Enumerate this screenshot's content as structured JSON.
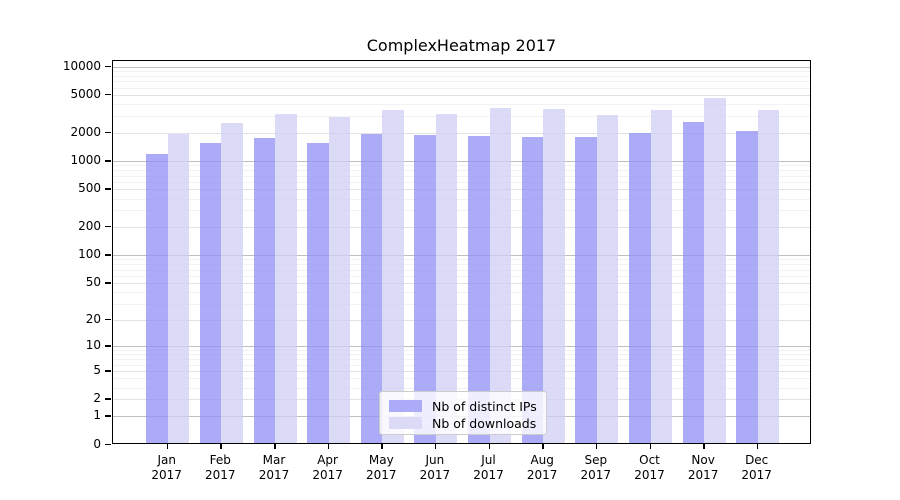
{
  "figure": {
    "title": "ComplexHeatmap 2017",
    "legend": [
      {
        "label": "Nb of distinct IPs",
        "color": "#ababf8"
      },
      {
        "label": "Nb of downloads",
        "color": "#dbdbf8"
      }
    ],
    "colors": {
      "ip_bar": "#ababf8",
      "downloads_bar": "#dbdbf8",
      "major_grid": "#bfbfbf",
      "minor_grid_labeled": "#e2e2e2",
      "minor_grid_faint": "#f2f2f2",
      "axis": "#000000"
    }
  },
  "chart_data": {
    "type": "bar",
    "title": "ComplexHeatmap 2017",
    "categories": [
      "Jan 2017",
      "Feb 2017",
      "Mar 2017",
      "Apr 2017",
      "May 2017",
      "Jun 2017",
      "Jul 2017",
      "Aug 2017",
      "Sep 2017",
      "Oct 2017",
      "Nov 2017",
      "Dec 2017"
    ],
    "series": [
      {
        "name": "Nb of distinct IPs",
        "values": [
          1140,
          1480,
          1700,
          1490,
          1870,
          1810,
          1780,
          1740,
          1720,
          1920,
          2520,
          2010
        ]
      },
      {
        "name": "Nb of downloads",
        "values": [
          1870,
          2420,
          3050,
          2840,
          3320,
          3050,
          3520,
          3440,
          2940,
          3340,
          4450,
          3380
        ]
      }
    ],
    "xlabel": "",
    "ylabel": "",
    "yscale": "log1p",
    "ylim": [
      0,
      10000
    ],
    "yticks": [
      0,
      1,
      2,
      5,
      10,
      20,
      50,
      100,
      200,
      500,
      1000,
      2000,
      5000,
      10000
    ],
    "grid": true,
    "legend_position": "inside-bottom-center"
  }
}
